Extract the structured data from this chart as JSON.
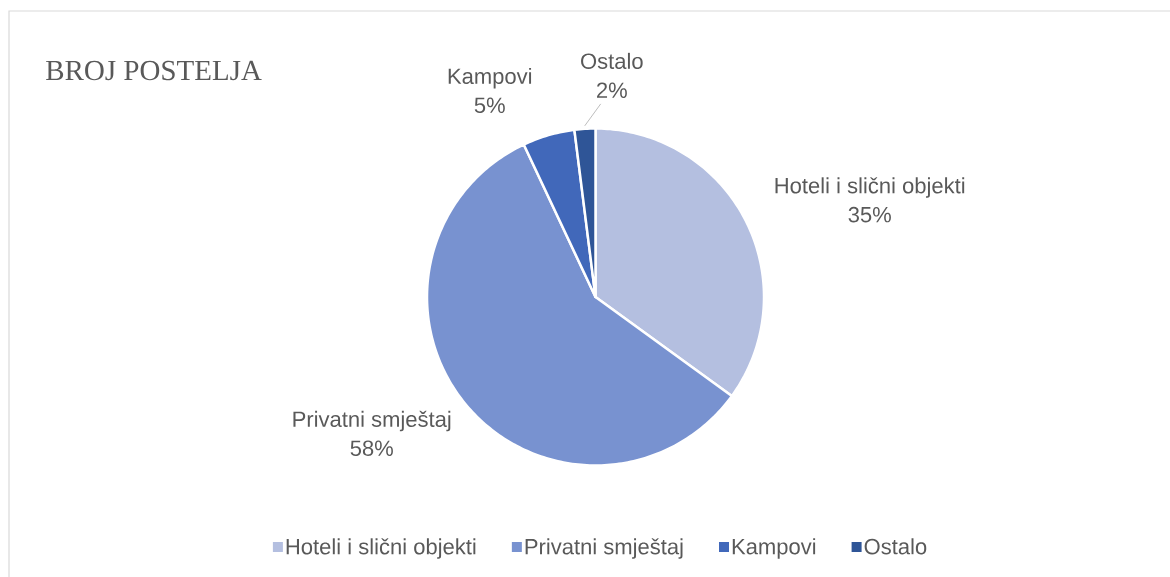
{
  "chart_data": {
    "type": "pie",
    "title": "BROJ POSTELJA",
    "categories": [
      "Hoteli i slični objekti",
      "Privatni smještaj",
      "Kampovi",
      "Ostalo"
    ],
    "values": [
      35,
      58,
      5,
      2
    ],
    "value_labels": [
      "35%",
      "58%",
      "5%",
      "2%"
    ],
    "colors": [
      "#b4bfe0",
      "#7892d0",
      "#4168ba",
      "#2f5597"
    ],
    "legend": "bottom"
  }
}
